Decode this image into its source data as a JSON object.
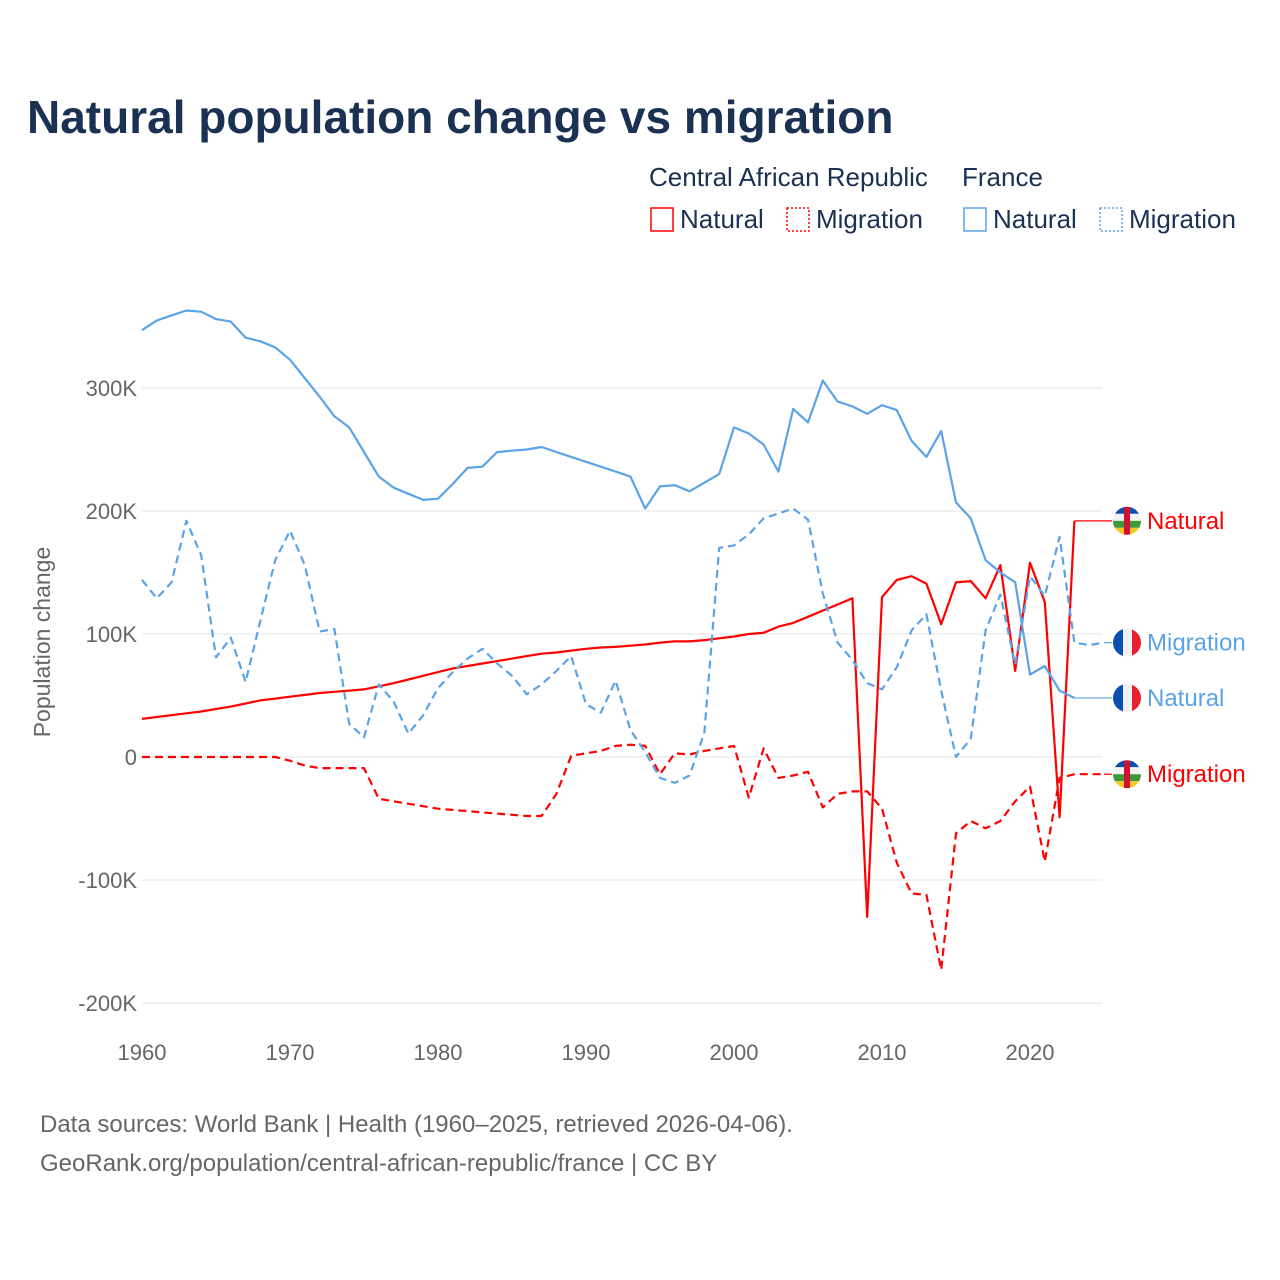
{
  "chart_data": {
    "type": "line",
    "title": "Natural population change vs migration",
    "ylabel": "Population change",
    "xlabel": "",
    "xlim": [
      1960,
      2025
    ],
    "ylim": [
      -200000,
      360000
    ],
    "x_ticks": [
      1960,
      1970,
      1980,
      1990,
      2000,
      2010,
      2020
    ],
    "y_ticks": [
      -200000,
      -100000,
      0,
      100000,
      200000,
      300000
    ],
    "y_tick_labels": [
      "-200K",
      "-100K",
      "0",
      "100K",
      "200K",
      "300K"
    ],
    "grid": "horizontal",
    "legend_placement": "top-right",
    "legend": {
      "groups": [
        {
          "name": "Central African Republic",
          "items": [
            "Natural",
            "Migration"
          ]
        },
        {
          "name": "France",
          "items": [
            "Natural",
            "Migration"
          ]
        }
      ]
    },
    "series": [
      {
        "name": "Natural",
        "country": "Central African Republic",
        "color": "#ff0000",
        "dash": false,
        "start": 1960,
        "values": [
          31000,
          32500,
          34000,
          35500,
          37000,
          39000,
          41000,
          43500,
          46000,
          47500,
          49000,
          50500,
          52000,
          53000,
          54000,
          55000,
          57500,
          60000,
          63000,
          66000,
          69000,
          72000,
          74000,
          76000,
          78000,
          80000,
          82000,
          84000,
          85000,
          86500,
          88000,
          89000,
          89500,
          90500,
          91500,
          93000,
          94000,
          94000,
          95000,
          96500,
          98000,
          100000,
          101000,
          106000,
          109000,
          114000,
          119000,
          124000,
          129000,
          -130000,
          130000,
          144000,
          147000,
          141000,
          108000,
          142000,
          143000,
          129000,
          156000,
          70000,
          158000,
          126000,
          -49000,
          192000
        ]
      },
      {
        "name": "Migration",
        "country": "Central African Republic",
        "color": "#ff0000",
        "dash": true,
        "start": 1960,
        "values": [
          0,
          0,
          0,
          0,
          0,
          0,
          0,
          0,
          0,
          0,
          -3000,
          -7000,
          -9000,
          -9000,
          -9000,
          -9000,
          -34000,
          -36000,
          -38000,
          -40000,
          -42000,
          -43000,
          -44000,
          -45000,
          -46000,
          -47000,
          -48000,
          -48000,
          -30000,
          1000,
          3000,
          5000,
          9000,
          10000,
          9000,
          -14000,
          3000,
          2000,
          5000,
          7000,
          9000,
          -33000,
          7000,
          -17000,
          -15000,
          -12000,
          -41000,
          -30000,
          -28000,
          -28000,
          -42000,
          -86000,
          -111000,
          -112000,
          -173000,
          -62000,
          -52000,
          -58000,
          -52000,
          -36000,
          -24000,
          -85000,
          -17000,
          -14000,
          -14000,
          -14000
        ]
      },
      {
        "name": "Natural",
        "country": "France",
        "color": "#5ba3e6",
        "dash": false,
        "start": 1960,
        "values": [
          347000,
          355000,
          359000,
          363000,
          362000,
          356000,
          354000,
          341000,
          338000,
          333000,
          323000,
          308000,
          293000,
          277000,
          268000,
          248000,
          228000,
          219000,
          214000,
          209000,
          210000,
          222000,
          235000,
          236000,
          248000,
          249000,
          250000,
          252000,
          248000,
          244000,
          240000,
          236000,
          232000,
          228000,
          202000,
          220000,
          221000,
          216000,
          223000,
          230000,
          268000,
          263000,
          254000,
          232000,
          283000,
          272000,
          306000,
          289000,
          285000,
          279000,
          286000,
          282000,
          257000,
          244000,
          265000,
          207000,
          194000,
          160000,
          150000,
          142000,
          67000,
          74000,
          54000,
          48000
        ]
      },
      {
        "name": "Migration",
        "country": "France",
        "color": "#5ba3e6",
        "dash": true,
        "start": 1960,
        "values": [
          144000,
          129000,
          142000,
          192000,
          164000,
          81000,
          97000,
          61000,
          111000,
          160000,
          184000,
          156000,
          102000,
          104000,
          27000,
          16000,
          59000,
          45000,
          19000,
          34000,
          56000,
          69000,
          80000,
          88000,
          76000,
          66000,
          51000,
          59000,
          70000,
          82000,
          43000,
          36000,
          62000,
          22000,
          4000,
          -17000,
          -21000,
          -15000,
          20000,
          170000,
          172000,
          181000,
          194000,
          198000,
          202000,
          193000,
          133000,
          93000,
          79000,
          60000,
          55000,
          73000,
          103000,
          116000,
          54000,
          0,
          15000,
          103000,
          132000,
          75000,
          147000,
          131000,
          179000,
          93000,
          91000,
          93000
        ]
      }
    ],
    "end_labels": [
      {
        "text": "Natural",
        "series": 0,
        "flag": "central-african-republic"
      },
      {
        "text": "Migration",
        "series": 3,
        "flag": "france"
      },
      {
        "text": "Natural",
        "series": 2,
        "flag": "france"
      },
      {
        "text": "Migration",
        "series": 1,
        "flag": "central-african-republic"
      }
    ]
  },
  "footer": {
    "line1": "Data sources: World Bank | Health (1960–2025, retrieved 2026-04-06).",
    "line2": "GeoRank.org/population/central-african-republic/france | CC BY"
  }
}
